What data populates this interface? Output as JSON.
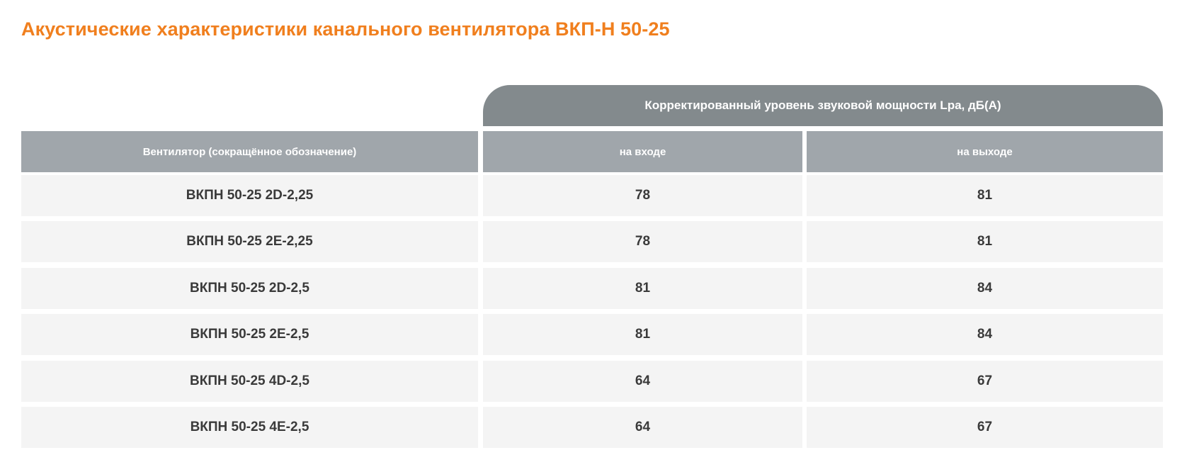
{
  "title": "Акустические характеристики канального вентилятора ВКП-Н 50-25",
  "table": {
    "group_header": "Корректированный уровень звуковой мощности Lpa, дБ(А)",
    "columns": [
      "Вентилятор (сокращённое обозначение)",
      "на входе",
      "на выходе"
    ],
    "rows": [
      [
        "ВКПН 50-25 2D-2,25",
        "78",
        "81"
      ],
      [
        "ВКПН 50-25 2E-2,25",
        "78",
        "81"
      ],
      [
        "ВКПН 50-25 2D-2,5",
        "81",
        "84"
      ],
      [
        "ВКПН 50-25 2E-2,5",
        "81",
        "84"
      ],
      [
        "ВКПН 50-25 4D-2,5",
        "64",
        "67"
      ],
      [
        "ВКПН 50-25 4E-2,5",
        "64",
        "67"
      ]
    ]
  }
}
